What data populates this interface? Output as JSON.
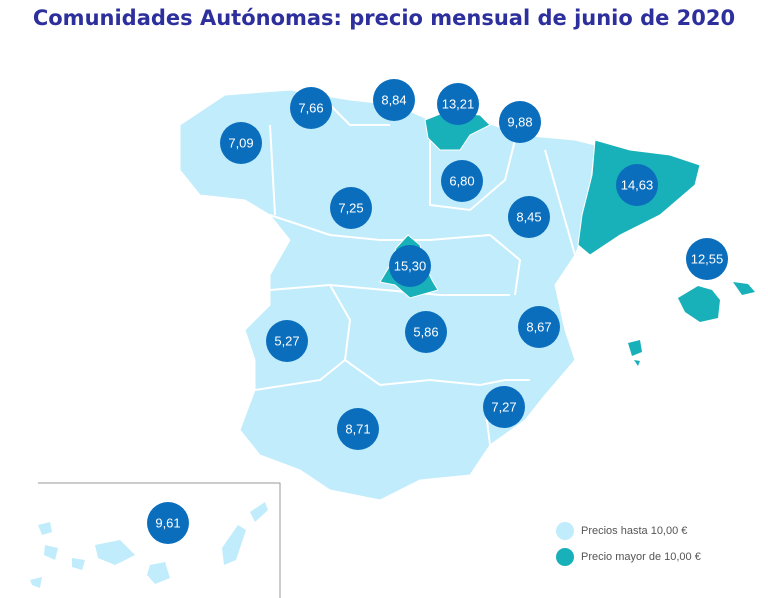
{
  "title": "Comunidades Autónomas: precio mensual de junio de 2020",
  "colors": {
    "low": "#c0ecfb",
    "high": "#19b1b9",
    "badge": "#0a6ebd",
    "border": "#ffffff"
  },
  "legend": [
    {
      "label": "Precios hasta 10,00 €",
      "color": "#c0ecfb"
    },
    {
      "label": "Precio mayor de 10,00 €",
      "color": "#19b1b9"
    }
  ],
  "regions": [
    {
      "name": "Galicia",
      "price": "7,09",
      "category": "low"
    },
    {
      "name": "Asturias",
      "price": "7,66",
      "category": "low"
    },
    {
      "name": "Cantabria",
      "price": "8,84",
      "category": "low"
    },
    {
      "name": "País Vasco",
      "price": "13,21",
      "category": "high"
    },
    {
      "name": "Navarra",
      "price": "9,88",
      "category": "low"
    },
    {
      "name": "La Rioja",
      "price": "6,80",
      "category": "low"
    },
    {
      "name": "Cataluña",
      "price": "14,63",
      "category": "high"
    },
    {
      "name": "Castilla y León",
      "price": "7,25",
      "category": "low"
    },
    {
      "name": "Aragón",
      "price": "8,45",
      "category": "low"
    },
    {
      "name": "Madrid",
      "price": "15,30",
      "category": "high"
    },
    {
      "name": "Islas Baleares",
      "price": "12,55",
      "category": "high"
    },
    {
      "name": "Extremadura",
      "price": "5,27",
      "category": "low"
    },
    {
      "name": "Castilla-La Mancha",
      "price": "5,86",
      "category": "low"
    },
    {
      "name": "Comunidad Valenciana",
      "price": "8,67",
      "category": "low"
    },
    {
      "name": "Murcia",
      "price": "7,27",
      "category": "low"
    },
    {
      "name": "Andalucía",
      "price": "8,71",
      "category": "low"
    },
    {
      "name": "Canarias",
      "price": "9,61",
      "category": "low"
    }
  ]
}
